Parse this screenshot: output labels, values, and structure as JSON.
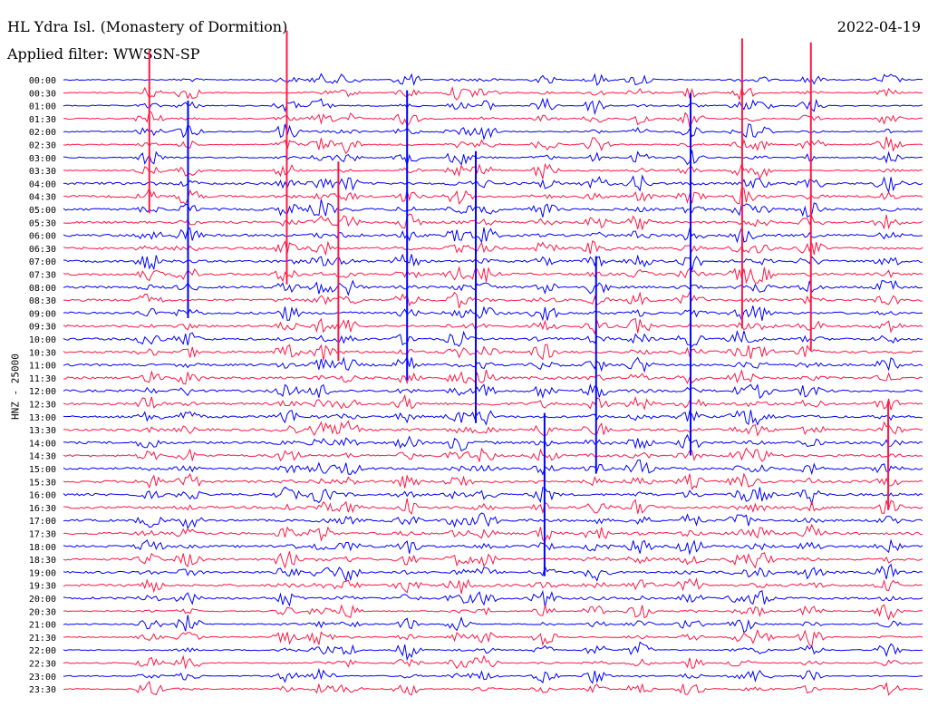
{
  "header": {
    "station": "HL Ydra Isl. (Monastery of Dormition)",
    "date": "2022-04-19",
    "filter": "Applied filter: WWSSN-SP"
  },
  "colors": {
    "odd": "#0000ff",
    "even": "#ff1744",
    "background": "#ffffff"
  },
  "chart_data": {
    "type": "line",
    "title": "HL Ydra Isl. (Monastery of Dormition)",
    "subtitle": "Applied filter: WWSSN-SP",
    "ylabel": "HNZ - 25000",
    "xlabel": "",
    "grid": false,
    "legend": "none",
    "row_labels": [
      "00:00",
      "00:30",
      "01:00",
      "01:30",
      "02:00",
      "02:30",
      "03:00",
      "03:30",
      "04:00",
      "04:30",
      "05:00",
      "05:30",
      "06:00",
      "06:30",
      "07:00",
      "07:30",
      "08:00",
      "08:30",
      "09:00",
      "09:30",
      "10:00",
      "10:30",
      "11:00",
      "11:30",
      "12:00",
      "12:30",
      "13:00",
      "13:30",
      "14:00",
      "14:30",
      "15:00",
      "15:30",
      "16:00",
      "16:30",
      "17:00",
      "17:30",
      "18:00",
      "18:30",
      "19:00",
      "19:30",
      "20:00",
      "20:30",
      "21:00",
      "21:30",
      "22:00",
      "22:30",
      "23:00",
      "23:30"
    ],
    "x_minutes_per_row": 30,
    "notable_events_fraction_of_row": [
      0.1,
      0.145,
      0.26,
      0.3,
      0.33,
      0.4,
      0.46,
      0.49,
      0.56,
      0.62,
      0.67,
      0.73,
      0.79,
      0.81,
      0.87,
      0.96
    ]
  }
}
